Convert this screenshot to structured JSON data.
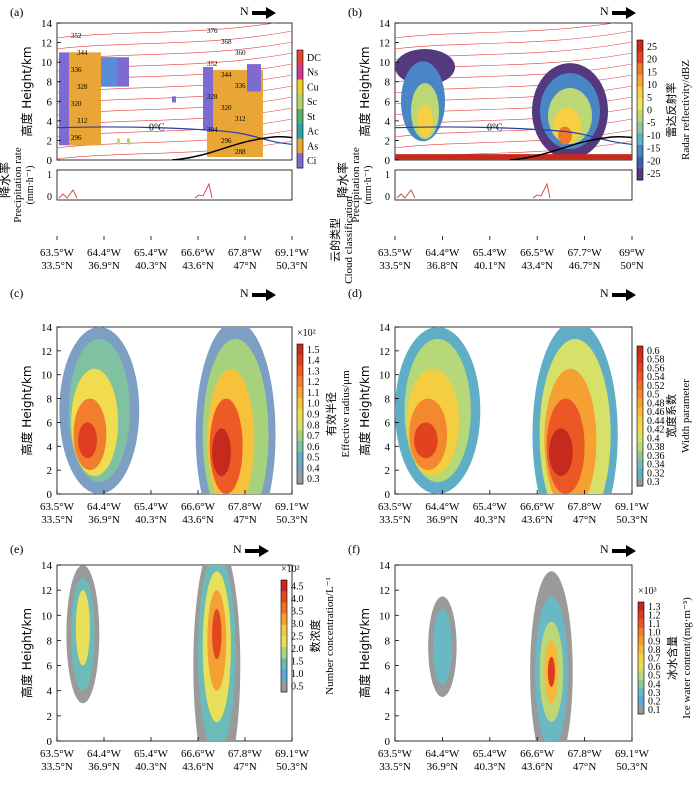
{
  "figure": {
    "north_label": "N",
    "x_tick_lon_standard": [
      "63.5°W",
      "64.4°W",
      "65.4°W",
      "66.6°W",
      "67.8°W",
      "69.1°W"
    ],
    "x_tick_lat_standard": [
      "33.5°N",
      "36.9°N",
      "40.3°N",
      "43.6°N",
      "47°N",
      "50.3°N"
    ],
    "x_tick_lon_a": [
      "63.5°W",
      "64.4°W",
      "65.4°W",
      "66.6°W",
      "67.8°W",
      "69.1°W"
    ],
    "x_tick_lat_a": [
      "33.5°N",
      "36.9°N",
      "40.3°N",
      "43.6°N",
      "47°N",
      "50.3°N"
    ],
    "x_tick_lon_b": [
      "63.5°W",
      "64.4°W",
      "65.4°W",
      "66.5°W",
      "67.7°W",
      "69°W"
    ],
    "x_tick_lat_b": [
      "33.5°N",
      "36.8°N",
      "40.1°N",
      "43.4°N",
      "46.7°N",
      "50°N"
    ],
    "y_label_cn": "高度",
    "y_label_en": "Height/km",
    "precip_label_cn": "降水率",
    "precip_label_en": "Precipitation rate",
    "precip_unit": "(mm·h⁻¹)"
  },
  "chart_data": [
    {
      "panel": "(a)",
      "type": "heatmap",
      "title": "",
      "ylim": [
        0,
        14
      ],
      "yticks": [
        "0",
        "2",
        "4",
        "6",
        "8",
        "10",
        "12",
        "14"
      ],
      "precip_ticks": [
        "0",
        "1"
      ],
      "colorbar_label_cn": "云的类型",
      "colorbar_label_en": "Cloud classification",
      "categories": [
        "DC",
        "Ns",
        "Cu",
        "Sc",
        "St",
        "Ac",
        "As",
        "Ci"
      ],
      "category_colors": [
        "#e8433a",
        "#cf3a8f",
        "#e9d12a",
        "#b3d36a",
        "#55b06a",
        "#2aa3a8",
        "#e9a535",
        "#7d6bd1"
      ],
      "isotherm_label": "0°C",
      "theta_labels_left": [
        "352",
        "344",
        "336",
        "328",
        "320",
        "312",
        "296"
      ],
      "theta_labels_right": [
        "376",
        "368",
        "360",
        "352",
        "344",
        "336",
        "328",
        "320",
        "312",
        "304",
        "296",
        "288"
      ]
    },
    {
      "panel": "(b)",
      "type": "heatmap",
      "ylim": [
        0,
        14
      ],
      "yticks": [
        "0",
        "2",
        "4",
        "6",
        "8",
        "10",
        "12",
        "14"
      ],
      "precip_ticks": [
        "0",
        "1"
      ],
      "colorbar_label_cn": "雷达反射率",
      "colorbar_label_en": "Radar reflectivity/dBZ",
      "colorbar_ticks": [
        "25",
        "20",
        "15",
        "10",
        "5",
        "0",
        "-5",
        "-10",
        "-15",
        "-20",
        "-25"
      ],
      "colorbar_colors": [
        "#c52a1b",
        "#e0431e",
        "#ee7a2b",
        "#f5a534",
        "#f7cf42",
        "#f1e35a",
        "#bcd776",
        "#8fc7a0",
        "#5fb3c9",
        "#4a86c6",
        "#3f5fae",
        "#55397e"
      ],
      "isotherm_label": "0°C"
    },
    {
      "panel": "(c)",
      "type": "heatmap",
      "ylim": [
        0,
        14
      ],
      "yticks": [
        "0",
        "2",
        "4",
        "6",
        "8",
        "10",
        "12",
        "14"
      ],
      "colorbar_multiplier": "×10²",
      "colorbar_label_cn": "有效半径",
      "colorbar_label_en": "Effective radius/μm",
      "colorbar_ticks": [
        "1.5",
        "1.4",
        "1.3",
        "1.2",
        "1.1",
        "1.0",
        "0.9",
        "0.8",
        "0.7",
        "0.6",
        "0.5",
        "0.4",
        "0.3"
      ],
      "colorbar_colors": [
        "#c62a1c",
        "#de3d1f",
        "#ec5a26",
        "#f17d2d",
        "#f5a033",
        "#f7c13b",
        "#f0dc4e",
        "#d6e16a",
        "#a7d27c",
        "#7fc1a1",
        "#61b0c6",
        "#7d9fc4",
        "#9a9a9a"
      ]
    },
    {
      "panel": "(d)",
      "type": "heatmap",
      "ylim": [
        0,
        14
      ],
      "yticks": [
        "0",
        "2",
        "4",
        "6",
        "8",
        "10",
        "12",
        "14"
      ],
      "colorbar_label_cn": "宽度系数",
      "colorbar_label_en": "Width parameter",
      "colorbar_ticks": [
        "0.6",
        "0.58",
        "0.56",
        "0.54",
        "0.52",
        "0.5",
        "0.48",
        "0.46",
        "0.44",
        "0.42",
        "0.4",
        "0.38",
        "0.36",
        "0.34",
        "0.32",
        "0.3"
      ],
      "colorbar_colors": [
        "#c62a1c",
        "#d4321d",
        "#e1431f",
        "#eb5825",
        "#f06f29",
        "#f4882e",
        "#f6a033",
        "#f7b838",
        "#f5cd40",
        "#eedc4f",
        "#d7e068",
        "#b6d878",
        "#92ca8d",
        "#74bcab",
        "#5faec6",
        "#9a9a9a"
      ]
    },
    {
      "panel": "(e)",
      "type": "heatmap",
      "ylim": [
        0,
        14
      ],
      "yticks": [
        "0",
        "2",
        "4",
        "6",
        "8",
        "10",
        "12",
        "14"
      ],
      "colorbar_multiplier": "×10²",
      "colorbar_label_cn": "数浓度",
      "colorbar_label_en": "Number concentration/L⁻¹",
      "colorbar_ticks": [
        "4.5",
        "4.0",
        "3.5",
        "3.0",
        "2.5",
        "2.0",
        "1.5",
        "1.0",
        "0.5"
      ],
      "colorbar_colors": [
        "#c62a1c",
        "#e2461f",
        "#ef6f29",
        "#f5a033",
        "#f6c93e",
        "#e8df5a",
        "#a9d37c",
        "#6cbbb8",
        "#5aa9d8",
        "#9a9a9a"
      ]
    },
    {
      "panel": "(f)",
      "type": "heatmap",
      "ylim": [
        0,
        14
      ],
      "yticks": [
        "0",
        "2",
        "4",
        "6",
        "8",
        "10",
        "12",
        "14"
      ],
      "colorbar_multiplier": "×10³",
      "colorbar_label_cn": "冰水含量",
      "colorbar_label_en": "Ice water content/(mg·m⁻³)",
      "colorbar_ticks": [
        "1.3",
        "1.2",
        "1.1",
        "1.0",
        "0.9",
        "0.8",
        "0.7",
        "0.6",
        "0.5",
        "0.4",
        "0.3",
        "0.2",
        "0.1"
      ],
      "colorbar_colors": [
        "#c62a1c",
        "#dc3b1e",
        "#eb5724",
        "#f17a2b",
        "#f59b31",
        "#f6b938",
        "#f2d443",
        "#e0df5b",
        "#bcd777",
        "#8fc89c",
        "#69b8c3",
        "#5aa9d8",
        "#9a9a9a"
      ]
    }
  ]
}
